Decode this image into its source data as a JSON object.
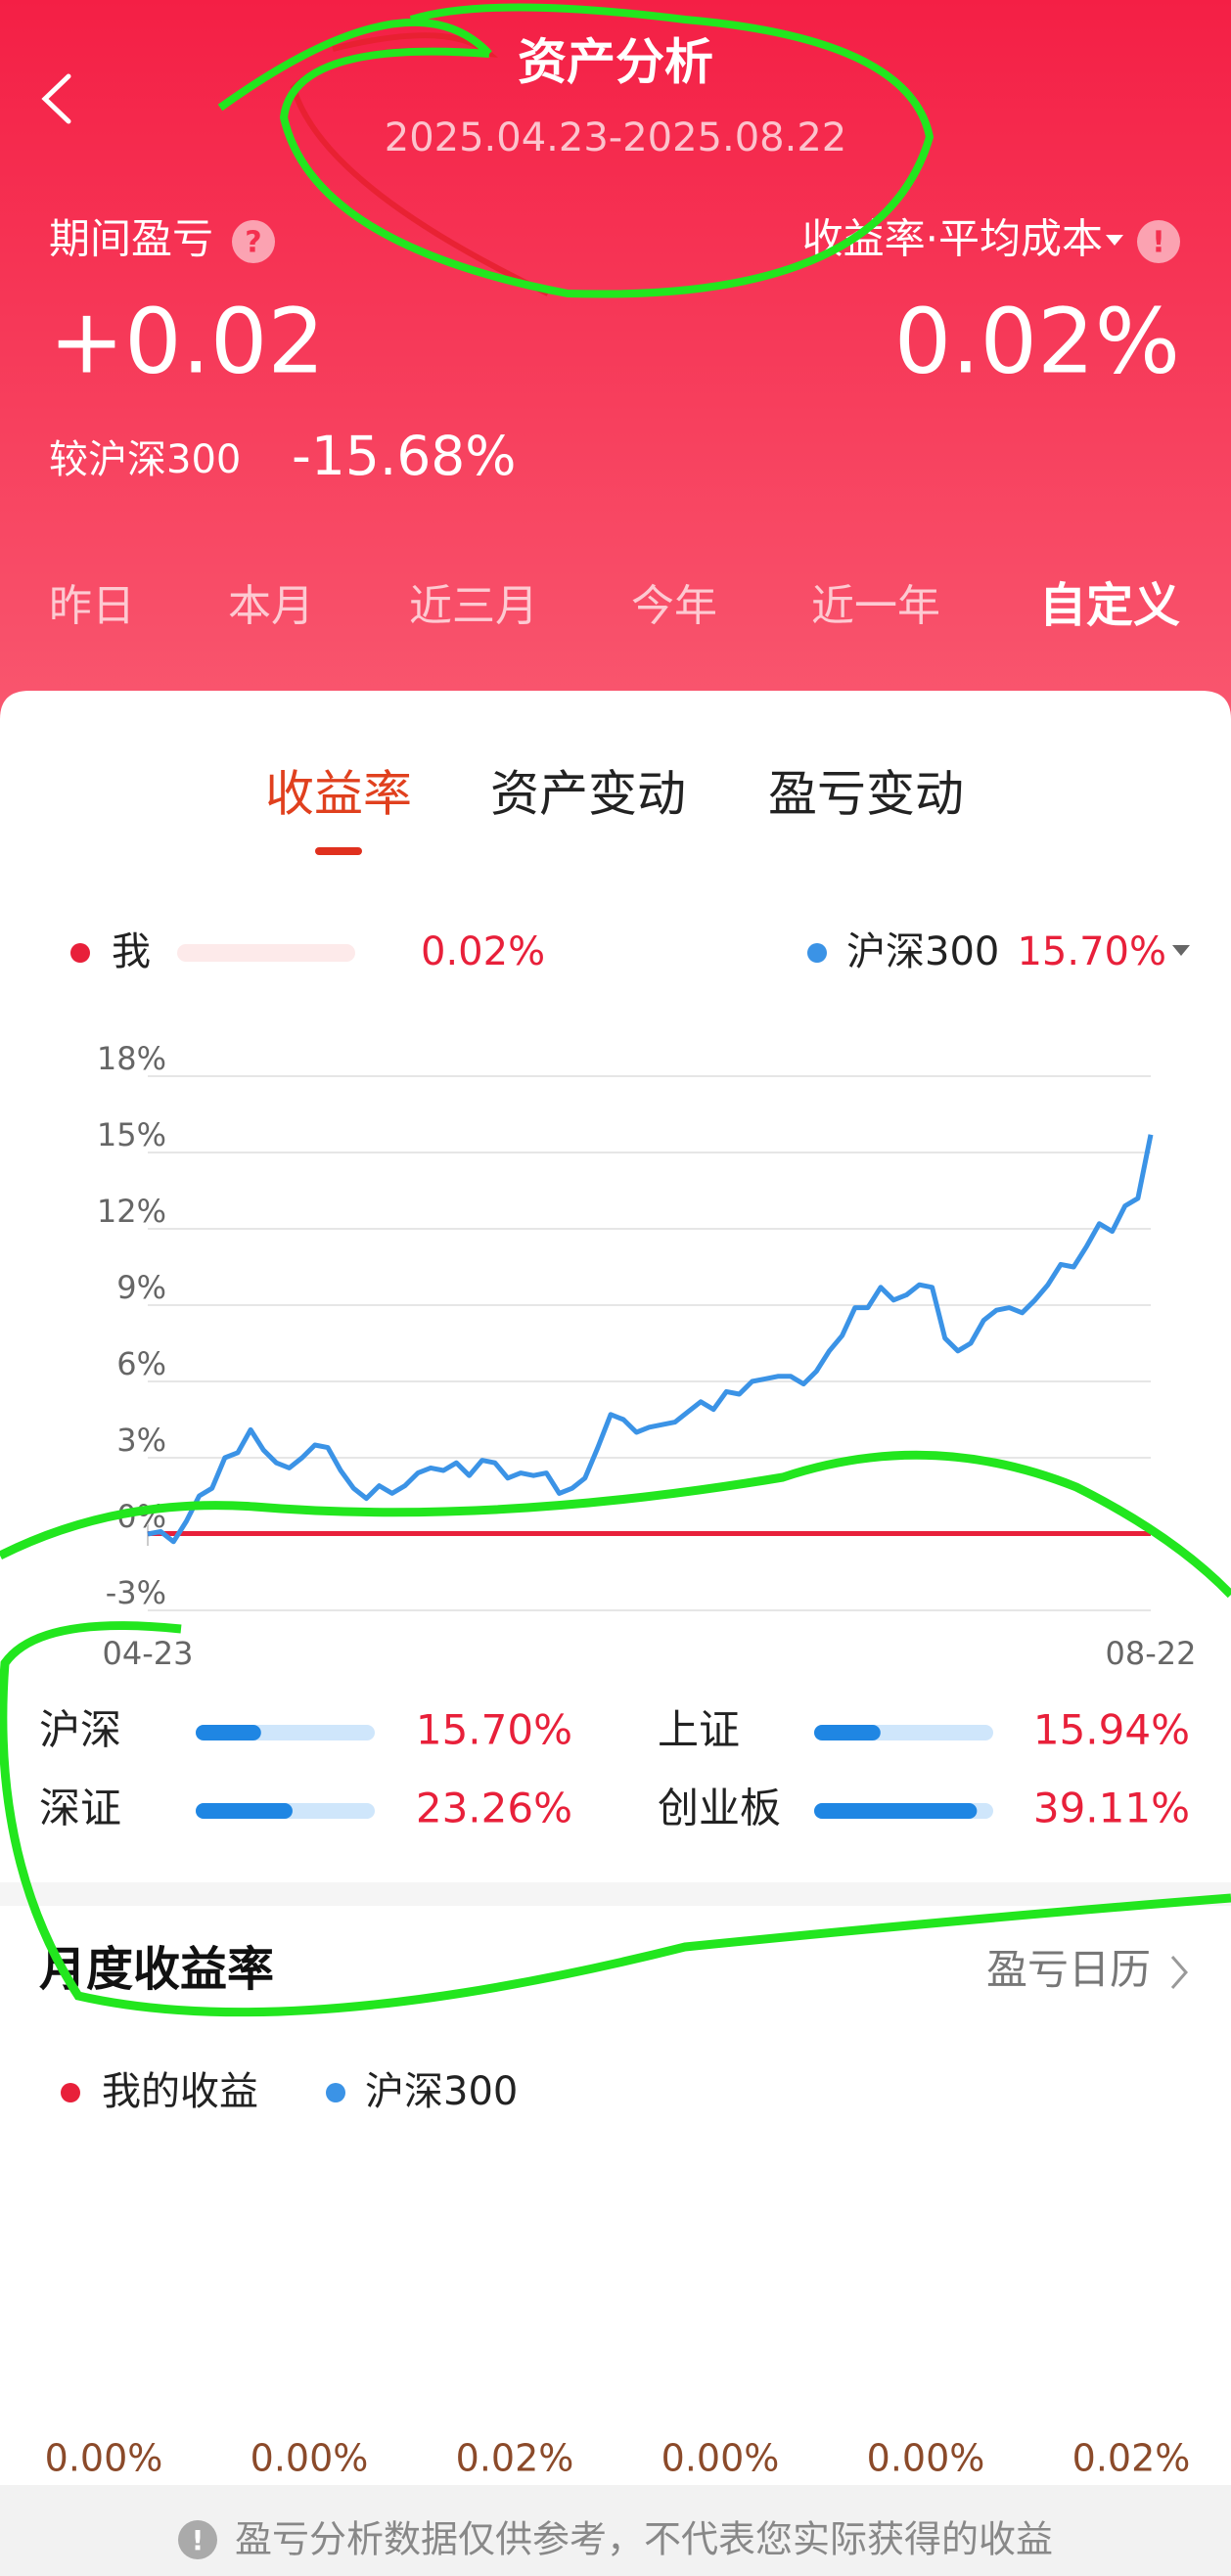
{
  "header": {
    "title": "资产分析",
    "date_range": "2025.04.23-2025.08.22"
  },
  "summary": {
    "pnl_label": "期间盈亏",
    "pnl_value": "+0.02",
    "rate_label": "收益率·平均成本",
    "rate_value": "0.02%",
    "compare_label": "较沪深300",
    "compare_value": "-15.68%"
  },
  "periods": {
    "items": [
      "昨日",
      "本月",
      "近三月",
      "今年",
      "近一年",
      "自定义"
    ],
    "selected": 5
  },
  "tabs": {
    "items": [
      "收益率",
      "资产变动",
      "盈亏变动"
    ],
    "selected": 0
  },
  "chart_data": {
    "type": "line",
    "categories": [
      "04-23",
      null,
      null,
      null,
      null,
      null,
      null,
      null,
      null,
      null,
      null,
      null,
      null,
      null,
      null,
      null,
      null,
      null,
      null,
      null,
      null,
      null,
      null,
      null,
      null,
      null,
      null,
      null,
      null,
      null,
      null,
      null,
      null,
      null,
      null,
      null,
      null,
      null,
      null,
      null,
      null,
      null,
      null,
      null,
      null,
      null,
      null,
      null,
      null,
      null,
      null,
      null,
      null,
      null,
      null,
      null,
      null,
      null,
      null,
      null,
      null,
      null,
      null,
      null,
      null,
      null,
      null,
      null,
      null,
      null,
      null,
      null,
      null,
      null,
      null,
      null,
      null,
      null,
      "08-22"
    ],
    "series": [
      {
        "name": "我",
        "color": "#e8203a",
        "legend_value": "0.02%",
        "values": [
          0.02,
          0.02,
          0.02,
          0.02,
          0.02,
          0.02,
          0.02,
          0.02,
          0.02,
          0.02,
          0.02,
          0.02,
          0.02,
          0.02,
          0.02,
          0.02,
          0.02,
          0.02,
          0.02,
          0.02,
          0.02,
          0.02,
          0.02,
          0.02,
          0.02,
          0.02,
          0.02,
          0.02,
          0.02,
          0.02,
          0.02,
          0.02,
          0.02,
          0.02,
          0.02,
          0.02,
          0.02,
          0.02,
          0.02,
          0.02,
          0.02,
          0.02,
          0.02,
          0.02,
          0.02,
          0.02,
          0.02,
          0.02,
          0.02,
          0.02,
          0.02,
          0.02,
          0.02,
          0.02,
          0.02,
          0.02,
          0.02,
          0.02,
          0.02,
          0.02,
          0.02,
          0.02,
          0.02,
          0.02,
          0.02,
          0.02,
          0.02,
          0.02,
          0.02,
          0.02,
          0.02,
          0.02,
          0.02,
          0.02,
          0.02,
          0.02,
          0.02,
          0.02,
          0.02
        ]
      },
      {
        "name": "沪深300",
        "color": "#3b93e6",
        "legend_value": "15.70%",
        "values": [
          0.0,
          0.1,
          -0.3,
          0.5,
          1.5,
          1.8,
          3.0,
          3.2,
          4.1,
          3.3,
          2.8,
          2.6,
          3.0,
          3.5,
          3.4,
          2.5,
          1.8,
          1.4,
          1.9,
          1.6,
          1.9,
          2.4,
          2.6,
          2.5,
          2.8,
          2.3,
          2.9,
          2.8,
          2.2,
          2.4,
          2.3,
          2.4,
          1.6,
          1.8,
          2.2,
          3.4,
          4.7,
          4.5,
          4.0,
          4.2,
          4.3,
          4.4,
          4.8,
          5.2,
          4.9,
          5.6,
          5.5,
          6.0,
          6.1,
          6.2,
          6.2,
          5.9,
          6.4,
          7.2,
          7.8,
          8.9,
          8.9,
          9.7,
          9.2,
          9.4,
          9.8,
          9.7,
          7.7,
          7.2,
          7.5,
          8.4,
          8.8,
          8.9,
          8.7,
          9.2,
          9.8,
          10.6,
          10.5,
          11.3,
          12.2,
          11.9,
          12.9,
          13.2,
          15.7
        ]
      }
    ],
    "ylim": [
      -3,
      18
    ],
    "yticks": [
      {
        "value": -3,
        "label": "-3%"
      },
      {
        "value": 0,
        "label": "0%"
      },
      {
        "value": 3,
        "label": "3%"
      },
      {
        "value": 6,
        "label": "6%"
      },
      {
        "value": 9,
        "label": "9%"
      },
      {
        "value": 12,
        "label": "12%"
      },
      {
        "value": 15,
        "label": "15%"
      },
      {
        "value": 18,
        "label": "18%"
      }
    ],
    "grid": true
  },
  "indices": [
    {
      "name": "沪深",
      "value": 15.7,
      "value_label": "15.70%"
    },
    {
      "name": "上证",
      "value": 15.94,
      "value_label": "15.94%"
    },
    {
      "name": "深证",
      "value": 23.26,
      "value_label": "23.26%"
    },
    {
      "name": "创业板",
      "value": 39.11,
      "value_label": "39.11%"
    }
  ],
  "monthly": {
    "title": "月度收益率",
    "link": "盈亏日历",
    "legend": [
      "我的收益",
      "沪深300"
    ],
    "values": [
      "0.00%",
      "0.00%",
      "0.02%",
      "0.00%",
      "0.00%",
      "0.02%"
    ]
  },
  "footer": {
    "notice": "盈亏分析数据仅供参考，不代表您实际获得的收益"
  }
}
